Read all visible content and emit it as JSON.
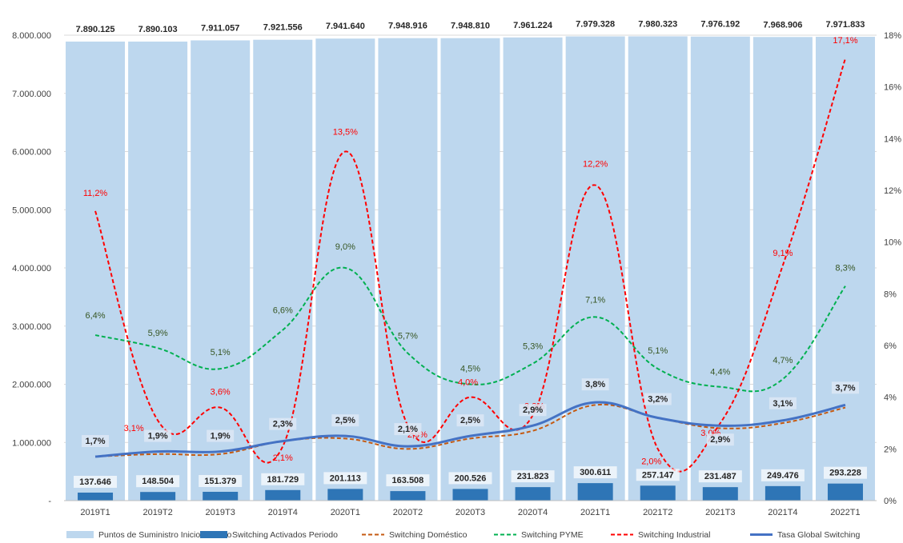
{
  "chart_data": {
    "type": "bar",
    "categories": [
      "2019T1",
      "2019T2",
      "2019T3",
      "2019T4",
      "2020T1",
      "2020T2",
      "2020T3",
      "2020T4",
      "2021T1",
      "2021T2",
      "2021T3",
      "2021T4",
      "2022T1"
    ],
    "series": [
      {
        "name": "Puntos de Suministro Inicio Periodo",
        "type": "bar",
        "axis": "left",
        "color": "#BDD7EE",
        "values": [
          7890125,
          7890103,
          7911057,
          7921556,
          7941640,
          7948916,
          7948810,
          7961224,
          7979328,
          7980323,
          7976192,
          7968906,
          7971833
        ],
        "labels": [
          "7.890.125",
          "7.890.103",
          "7.911.057",
          "7.921.556",
          "7.941.640",
          "7.948.916",
          "7.948.810",
          "7.961.224",
          "7.979.328",
          "7.980.323",
          "7.976.192",
          "7.968.906",
          "7.971.833"
        ]
      },
      {
        "name": "Switching Activados Periodo",
        "type": "bar",
        "axis": "left",
        "color": "#2E75B6",
        "values": [
          137646,
          148504,
          151379,
          181729,
          201113,
          163508,
          200526,
          231823,
          300611,
          257147,
          231487,
          249476,
          293228
        ],
        "labels": [
          "137.646",
          "148.504",
          "151.379",
          "181.729",
          "201.113",
          "163.508",
          "200.526",
          "231.823",
          "300.611",
          "257.147",
          "231.487",
          "249.476",
          "293.228"
        ]
      },
      {
        "name": "Switching Doméstico",
        "type": "line",
        "axis": "right",
        "color": "#C55A11",
        "dash": "dashed",
        "values": [
          1.7,
          1.8,
          1.8,
          2.3,
          2.4,
          2.0,
          2.4,
          2.7,
          3.7,
          3.2,
          2.8,
          3.0,
          3.6
        ],
        "labels": []
      },
      {
        "name": "Switching PYME",
        "type": "line",
        "axis": "right",
        "color": "#00B050",
        "dash": "dashed",
        "values": [
          6.4,
          5.9,
          5.1,
          6.6,
          9.0,
          5.7,
          4.5,
          5.3,
          7.1,
          5.1,
          4.4,
          4.7,
          8.3
        ],
        "labels": [
          "6,4%",
          "5,9%",
          "5,1%",
          "6,6%",
          "9,0%",
          "5,7%",
          "4,5%",
          "5,3%",
          "7,1%",
          "5,1%",
          "4,4%",
          "4,7%",
          "8,3%"
        ]
      },
      {
        "name": "Switching Industrial",
        "type": "line",
        "axis": "right",
        "color": "#FF0000",
        "dash": "dashed",
        "values": [
          11.2,
          3.1,
          3.6,
          2.1,
          13.5,
          2.9,
          4.0,
          3.3,
          12.2,
          2.0,
          3.0,
          9.1,
          17.1
        ],
        "labels": [
          "11,2%",
          "3,1%",
          "3,6%",
          "2,1%",
          "13,5%",
          "2,9%",
          "4,0%",
          "3,3%",
          "12,2%",
          "2,0%",
          "3,0%",
          "9,1%",
          "17,1%"
        ]
      },
      {
        "name": "Tasa Global Switching",
        "type": "line",
        "axis": "right",
        "color": "#4472C4",
        "dash": "solid",
        "values": [
          1.7,
          1.9,
          1.9,
          2.3,
          2.5,
          2.1,
          2.5,
          2.9,
          3.8,
          3.2,
          2.9,
          3.1,
          3.7
        ],
        "labels": [
          "1,7%",
          "1,9%",
          "1,9%",
          "2,3%",
          "2,5%",
          "2,1%",
          "2,5%",
          "2,9%",
          "3,8%",
          "3,2%",
          "2,9%",
          "3,1%",
          "3,7%"
        ]
      }
    ],
    "y_left": {
      "range": [
        0,
        8000000
      ],
      "ticks": [
        0,
        1000000,
        2000000,
        3000000,
        4000000,
        5000000,
        6000000,
        7000000,
        8000000
      ],
      "tick_labels": [
        "-",
        "1.000.000",
        "2.000.000",
        "3.000.000",
        "4.000.000",
        "5.000.000",
        "6.000.000",
        "7.000.000",
        "8.000.000"
      ]
    },
    "y_right": {
      "range": [
        0,
        18
      ],
      "ticks": [
        0,
        2,
        4,
        6,
        8,
        10,
        12,
        14,
        16,
        18
      ],
      "tick_labels": [
        "0%",
        "2%",
        "4%",
        "6%",
        "8%",
        "10%",
        "12%",
        "14%",
        "16%",
        "18%"
      ]
    },
    "grid": true,
    "legend_position": "bottom"
  }
}
